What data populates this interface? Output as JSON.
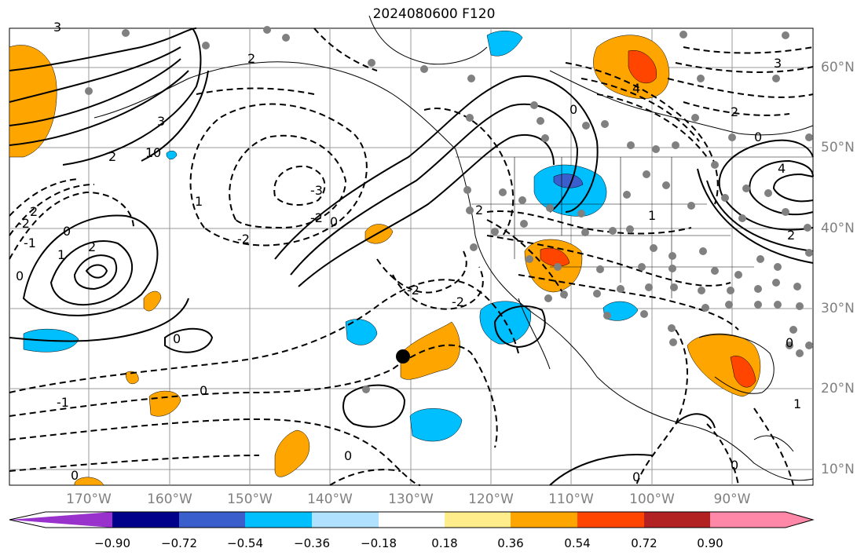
{
  "title": "2024080600 F120",
  "map": {
    "lon_ticks": [
      "170°W",
      "160°W",
      "150°W",
      "140°W",
      "130°W",
      "120°W",
      "110°W",
      "100°W",
      "90°W"
    ],
    "lat_ticks": [
      "60°N",
      "50°N",
      "40°N",
      "30°N",
      "20°N",
      "10°N"
    ],
    "contour_labels": [
      "-3",
      "-2",
      "-1",
      "0",
      "1",
      "2",
      "3",
      "4"
    ],
    "marker": "black dot"
  },
  "colorbar": {
    "ticks": [
      "−0.90",
      "−0.72",
      "−0.54",
      "−0.36",
      "−0.18",
      "0.18",
      "0.36",
      "0.54",
      "0.72",
      "0.90"
    ],
    "colors": [
      "#9932cc",
      "#00008b",
      "#3a5fcd",
      "#00bfff",
      "#b0e2ff",
      "#ffffff",
      "#ffec8b",
      "#ffa500",
      "#ff4500",
      "#b22222",
      "#ff88a8"
    ]
  }
}
